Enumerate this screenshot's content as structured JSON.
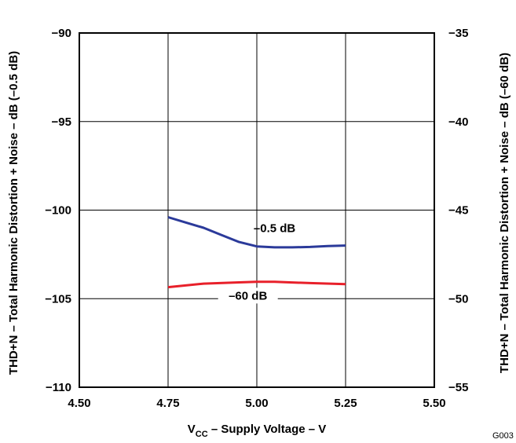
{
  "chart_data": {
    "type": "line",
    "title": "",
    "xlabel": "V",
    "xlabel_sub": "CC",
    "xlabel_rest": " – Supply Voltage – V",
    "ylabel_left": "THD+N – Total Harmonic Distortion + Noise – dB (–0.5 dB)",
    "ylabel_right": "THD+N – Total Harmonic Distortion + Noise – dB (–60 dB)",
    "xlim": [
      4.5,
      5.5
    ],
    "ylim_left": [
      -110,
      -90
    ],
    "ylim_right": [
      -55,
      -35
    ],
    "x_ticks": [
      "4.50",
      "4.75",
      "5.00",
      "5.25",
      "5.50"
    ],
    "y_ticks_left": [
      "−90",
      "−95",
      "−100",
      "−105",
      "−110"
    ],
    "y_ticks_right": [
      "−35",
      "−40",
      "−45",
      "−50",
      "−55"
    ],
    "grid": true,
    "series": [
      {
        "name": "–0.5 dB",
        "axis": "left",
        "color": "#2b3a9a",
        "x": [
          4.75,
          4.8,
          4.85,
          4.9,
          4.95,
          5.0,
          5.05,
          5.1,
          5.15,
          5.2,
          5.25
        ],
        "y": [
          -100.4,
          -100.7,
          -101.0,
          -101.4,
          -101.8,
          -102.05,
          -102.1,
          -102.1,
          -102.08,
          -102.03,
          -102.0
        ]
      },
      {
        "name": "–60 dB",
        "axis": "right",
        "color": "#e8202a",
        "x": [
          4.75,
          4.85,
          4.95,
          5.0,
          5.05,
          5.15,
          5.25
        ],
        "y": [
          -49.35,
          -49.15,
          -49.08,
          -49.05,
          -49.05,
          -49.12,
          -49.18
        ]
      }
    ],
    "annotations": [
      "G003"
    ]
  }
}
